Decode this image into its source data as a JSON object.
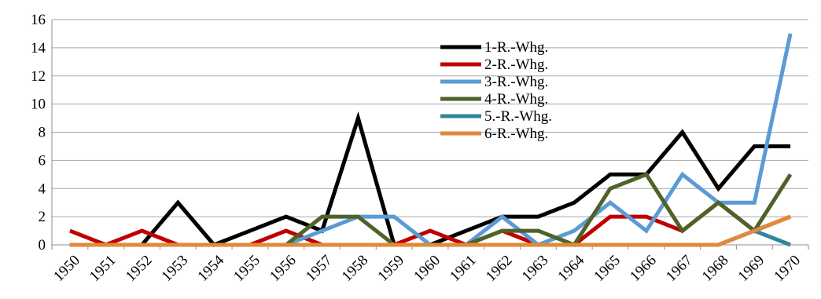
{
  "chart_data": {
    "type": "line",
    "title": "",
    "xlabel": "",
    "ylabel": "",
    "categories": [
      "1950",
      "1951",
      "1952",
      "1953",
      "1954",
      "1955",
      "1956",
      "1957",
      "1958",
      "1959",
      "1960",
      "1961",
      "1962",
      "1963",
      "1964",
      "1965",
      "1966",
      "1967",
      "1968",
      "1969",
      "1970"
    ],
    "ylim": [
      0,
      16
    ],
    "yticks": [
      0,
      2,
      4,
      6,
      8,
      10,
      12,
      14,
      16
    ],
    "grid": true,
    "legend_position": "upper-center",
    "series": [
      {
        "name": "1-R.-Whg.",
        "color": "#000000",
        "values": [
          0,
          0,
          0,
          3,
          0,
          1,
          2,
          1,
          9,
          0,
          0,
          1,
          2,
          2,
          3,
          5,
          5,
          8,
          4,
          7,
          7
        ]
      },
      {
        "name": "2-R.-Whg.",
        "color": "#c00000",
        "values": [
          1,
          0,
          1,
          0,
          0,
          0,
          1,
          0,
          0,
          0,
          1,
          0,
          1,
          0,
          0,
          2,
          2,
          1,
          3,
          1,
          2
        ]
      },
      {
        "name": "3-R.-Whg.",
        "color": "#5b9bd5",
        "values": [
          0,
          0,
          0,
          0,
          0,
          0,
          0,
          1,
          2,
          2,
          0,
          0,
          2,
          0,
          1,
          3,
          1,
          5,
          3,
          3,
          15
        ]
      },
      {
        "name": "4-R.-Whg.",
        "color": "#4f6228",
        "values": [
          0,
          0,
          0,
          0,
          0,
          0,
          0,
          2,
          2,
          0,
          0,
          0,
          1,
          1,
          0,
          4,
          5,
          1,
          3,
          1,
          5
        ]
      },
      {
        "name": "5.-R.-Whg.",
        "color": "#31859c",
        "values": [
          0,
          0,
          0,
          0,
          0,
          0,
          0,
          0,
          0,
          0,
          0,
          0,
          0,
          0,
          0,
          0,
          0,
          0,
          0,
          1,
          0
        ]
      },
      {
        "name": "6-R.-Whg.",
        "color": "#e08a3c",
        "values": [
          0,
          0,
          0,
          0,
          0,
          0,
          0,
          0,
          0,
          0,
          0,
          0,
          0,
          0,
          0,
          0,
          0,
          0,
          0,
          1,
          2
        ]
      }
    ]
  }
}
